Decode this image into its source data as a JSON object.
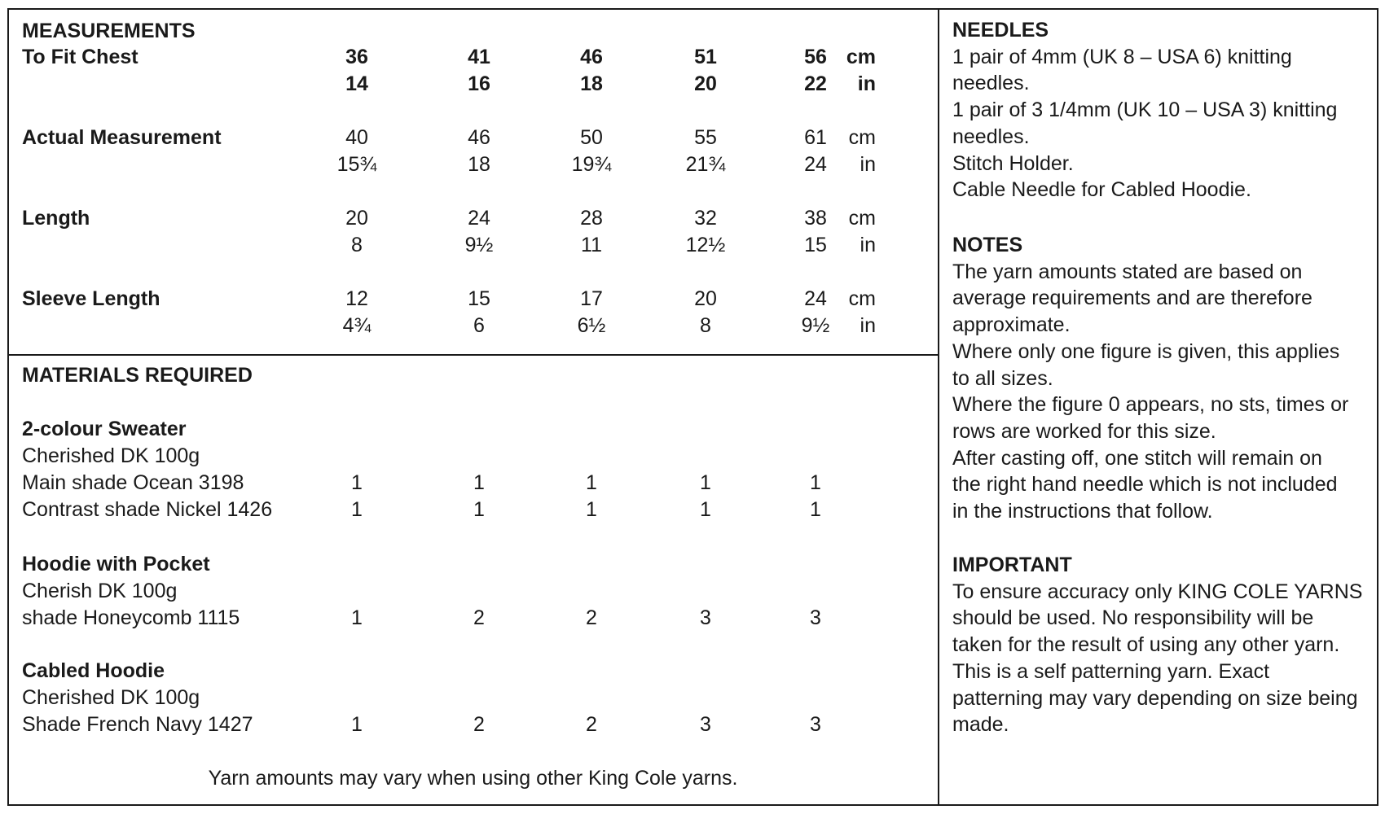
{
  "measurements": {
    "heading": "MEASUREMENTS",
    "rows": [
      {
        "label": "To Fit Chest",
        "bold": true,
        "cm": [
          "36",
          "41",
          "46",
          "51",
          "56"
        ],
        "in": [
          "14",
          "16",
          "18",
          "20",
          "22"
        ]
      },
      {
        "label": "Actual Measurement",
        "bold": false,
        "cm": [
          "40",
          "46",
          "50",
          "55",
          "61"
        ],
        "in": [
          "15¾",
          "18",
          "19¾",
          "21¾",
          "24"
        ]
      },
      {
        "label": "Length",
        "bold": false,
        "cm": [
          "20",
          "24",
          "28",
          "32",
          "38"
        ],
        "in": [
          "8",
          "9½",
          "11",
          "12½",
          "15"
        ]
      },
      {
        "label": "Sleeve Length",
        "bold": false,
        "cm": [
          "12",
          "15",
          "17",
          "20",
          "24"
        ],
        "in": [
          "4¾",
          "6",
          "6½",
          "8",
          "9½"
        ]
      }
    ],
    "unit_cm": "cm",
    "unit_in": "in"
  },
  "materials": {
    "heading": "MATERIALS REQUIRED",
    "groups": [
      {
        "title": "2-colour Sweater",
        "yarn": "Cherished DK 100g",
        "items": [
          {
            "label": "Main shade Ocean 3198",
            "values": [
              "1",
              "1",
              "1",
              "1",
              "1"
            ]
          },
          {
            "label": "Contrast shade Nickel 1426",
            "values": [
              "1",
              "1",
              "1",
              "1",
              "1"
            ]
          }
        ]
      },
      {
        "title": "Hoodie with Pocket",
        "yarn": "Cherish DK 100g",
        "items": [
          {
            "label": "shade Honeycomb 1115",
            "values": [
              "1",
              "2",
              "2",
              "3",
              "3"
            ]
          }
        ]
      },
      {
        "title": "Cabled Hoodie",
        "yarn": "Cherished DK 100g",
        "items": [
          {
            "label": "Shade French Navy 1427",
            "values": [
              "1",
              "2",
              "2",
              "3",
              "3"
            ]
          }
        ]
      }
    ],
    "footnote": "Yarn amounts may vary when using other King Cole yarns."
  },
  "needles": {
    "heading": "NEEDLES",
    "lines": [
      "1 pair of 4mm (UK 8 – USA 6) knitting",
      "needles.",
      "1 pair of 3 1/4mm (UK 10 – USA 3) knitting",
      "needles.",
      "Stitch Holder.",
      "Cable Needle for Cabled Hoodie."
    ]
  },
  "notes": {
    "heading": "NOTES",
    "lines": [
      "The yarn amounts stated are based on",
      "average requirements and are therefore",
      "approximate.",
      "Where only one figure is given, this applies",
      "to all sizes.",
      "Where the figure 0 appears, no sts, times or",
      "rows are worked for this size.",
      "After casting off, one stitch will remain on",
      "the right hand needle which is not included",
      "in the instructions that follow."
    ]
  },
  "important": {
    "heading": "IMPORTANT",
    "lines": [
      "To ensure accuracy only KING COLE YARNS",
      "should be used. No responsibility will be",
      "taken for the result of using any other yarn.",
      "This is a self patterning yarn. Exact",
      "patterning may vary depending on size being",
      "made."
    ]
  }
}
